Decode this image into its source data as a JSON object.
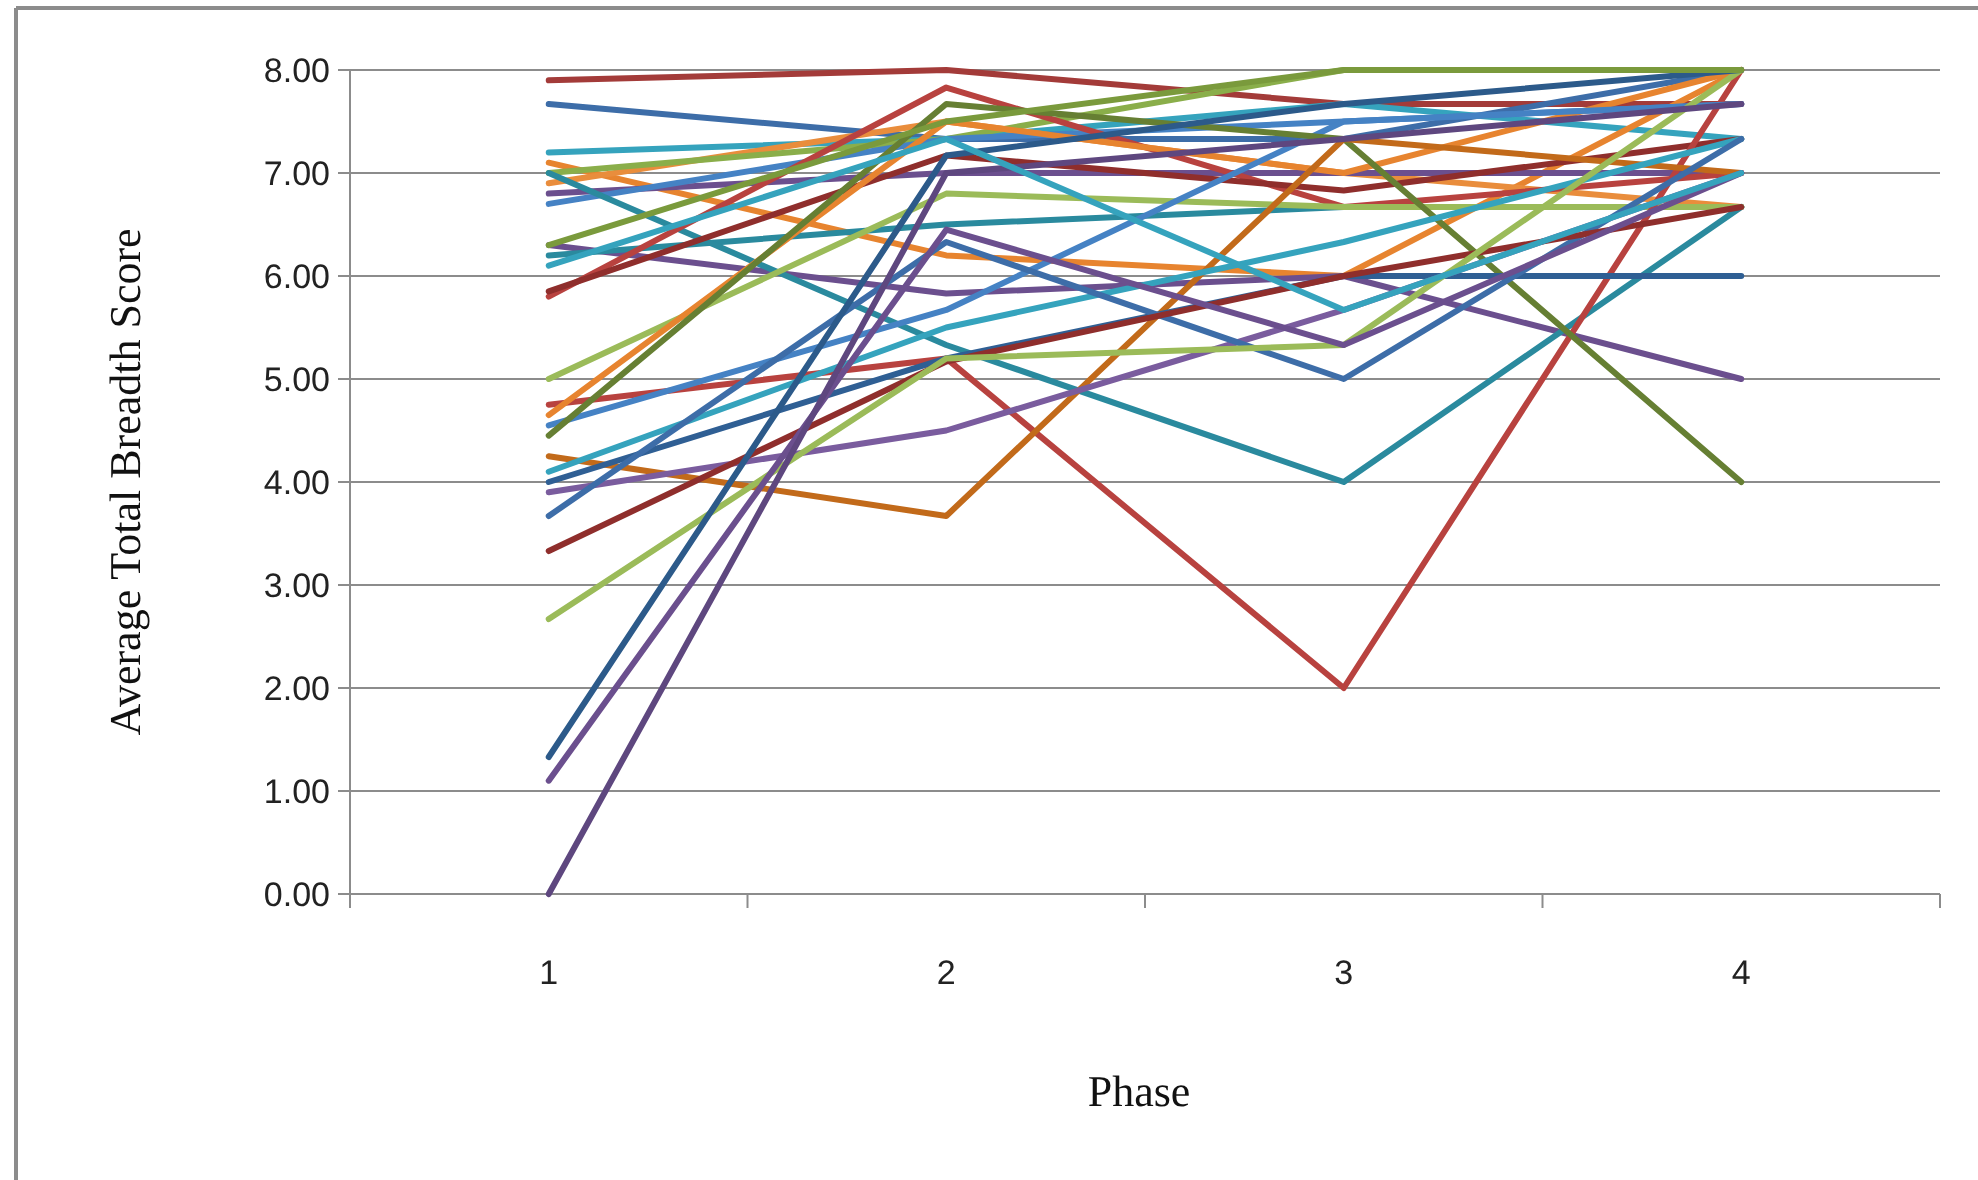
{
  "chart_data": {
    "type": "line",
    "xlabel": "Phase",
    "ylabel": "Average Total Breadth Score",
    "categories": [
      "1",
      "2",
      "3",
      "4"
    ],
    "ylim": [
      0,
      8
    ],
    "yticks": [
      {
        "value": 0,
        "label": "0.00"
      },
      {
        "value": 1,
        "label": "1.00"
      },
      {
        "value": 2,
        "label": "2.00"
      },
      {
        "value": 3,
        "label": "3.00"
      },
      {
        "value": 4,
        "label": "4.00"
      },
      {
        "value": 5,
        "label": "5.00"
      },
      {
        "value": 6,
        "label": "6.00"
      },
      {
        "value": 7,
        "label": "7.00"
      },
      {
        "value": 8,
        "label": "8.00"
      }
    ],
    "grid": "y",
    "marker": "none",
    "line_style": "solid",
    "series": [
      {
        "color": "#a33b39",
        "values": [
          7.9,
          8.0,
          7.67,
          7.67
        ]
      },
      {
        "color": "#3d6da8",
        "values": [
          7.67,
          7.33,
          7.33,
          8.0
        ]
      },
      {
        "color": "#35a3bd",
        "values": [
          7.2,
          7.33,
          7.67,
          7.33
        ]
      },
      {
        "color": "#e7842f",
        "values": [
          7.1,
          6.2,
          6.0,
          8.0
        ]
      },
      {
        "color": "#e98d3c",
        "values": [
          6.9,
          7.5,
          7.0,
          6.67
        ]
      },
      {
        "color": "#8aae4a",
        "values": [
          7.0,
          7.33,
          8.0,
          8.0
        ]
      },
      {
        "color": "#6b4f8e",
        "values": [
          6.8,
          7.0,
          7.0,
          7.0
        ]
      },
      {
        "color": "#4582c4",
        "values": [
          6.7,
          7.33,
          7.5,
          7.67
        ]
      },
      {
        "color": "#6b4f8e",
        "values": [
          6.3,
          5.83,
          6.0,
          5.0
        ]
      },
      {
        "color": "#2a8a9e",
        "values": [
          6.2,
          6.5,
          6.67,
          6.67
        ]
      },
      {
        "color": "#2a8a9e",
        "values": [
          7.0,
          5.33,
          4.0,
          6.67
        ]
      },
      {
        "color": "#b8423f",
        "values": [
          5.8,
          7.83,
          6.67,
          7.0
        ]
      },
      {
        "color": "#8f2e2c",
        "values": [
          5.85,
          7.17,
          6.83,
          7.33
        ]
      },
      {
        "color": "#9bbb59",
        "values": [
          5.0,
          6.8,
          6.67,
          6.67
        ]
      },
      {
        "color": "#b8423f",
        "values": [
          4.75,
          5.2,
          2.0,
          8.0
        ]
      },
      {
        "color": "#e7842f",
        "values": [
          4.65,
          7.5,
          7.0,
          8.0
        ]
      },
      {
        "color": "#4582c4",
        "values": [
          4.55,
          5.67,
          7.5,
          7.67
        ]
      },
      {
        "color": "#667f33",
        "values": [
          4.45,
          7.67,
          7.33,
          4.0
        ]
      },
      {
        "color": "#c26a1a",
        "values": [
          4.25,
          3.67,
          7.33,
          7.0
        ]
      },
      {
        "color": "#35a3bd",
        "values": [
          4.1,
          5.5,
          6.33,
          7.33
        ]
      },
      {
        "color": "#2f5f94",
        "values": [
          4.0,
          5.2,
          6.0,
          6.0
        ]
      },
      {
        "color": "#7a5c9e",
        "values": [
          3.9,
          4.5,
          5.67,
          7.0
        ]
      },
      {
        "color": "#3d6da8",
        "values": [
          3.67,
          6.33,
          5.0,
          7.33
        ]
      },
      {
        "color": "#8f2e2c",
        "values": [
          3.33,
          5.17,
          6.0,
          6.67
        ]
      },
      {
        "color": "#9bbb59",
        "values": [
          2.67,
          5.2,
          5.33,
          8.0
        ]
      },
      {
        "color": "#2c5a8a",
        "values": [
          1.33,
          7.17,
          7.67,
          8.0
        ]
      },
      {
        "color": "#6b4f8e",
        "values": [
          1.1,
          6.45,
          5.33,
          7.0
        ]
      },
      {
        "color": "#5e477f",
        "values": [
          0.0,
          7.0,
          7.33,
          7.67
        ]
      },
      {
        "color": "#7a9a3c",
        "values": [
          6.3,
          7.5,
          8.0,
          8.0
        ]
      },
      {
        "color": "#35a3bd",
        "values": [
          6.1,
          7.33,
          5.67,
          7.0
        ]
      }
    ]
  }
}
